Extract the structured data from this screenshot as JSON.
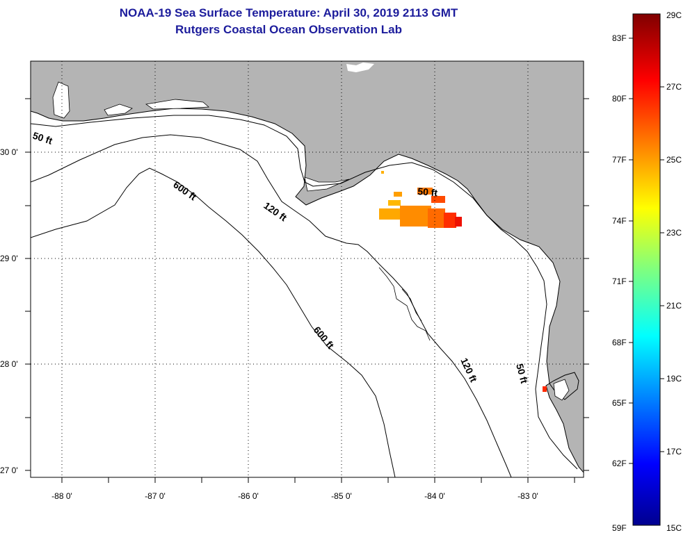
{
  "title": {
    "line1": "NOAA-19 Sea Surface Temperature:  April 30, 2019 2113 GMT",
    "line2": "Rutgers Coastal Ocean Observation Lab"
  },
  "map": {
    "lat_labels": [
      "30 0'",
      "29 0'",
      "28 0'",
      "27 0'"
    ],
    "lon_labels": [
      "-88 0'",
      "-87 0'",
      "-86 0'",
      "-85 0'",
      "-84 0'",
      "-83 0'"
    ],
    "contours": {
      "c50_left": "50 ft",
      "c50_bigbend": "50 ft",
      "c50_lower": "50 ft",
      "c120_upper": "120 ft",
      "c120_lower": "120 ft",
      "c600_upper": "600 ft",
      "c600_lower": "600 ft"
    },
    "colors": {
      "land": "#b4b4b4",
      "ocean": "#ffffff"
    }
  },
  "colorbar": {
    "fahrenheit_labels": [
      "83F",
      "80F",
      "77F",
      "74F",
      "71F",
      "68F",
      "65F",
      "62F",
      "59F"
    ],
    "celsius_labels": [
      "29C",
      "27C",
      "25C",
      "23C",
      "21C",
      "19C",
      "17C",
      "15C"
    ],
    "range_celsius": [
      15,
      29
    ]
  }
}
